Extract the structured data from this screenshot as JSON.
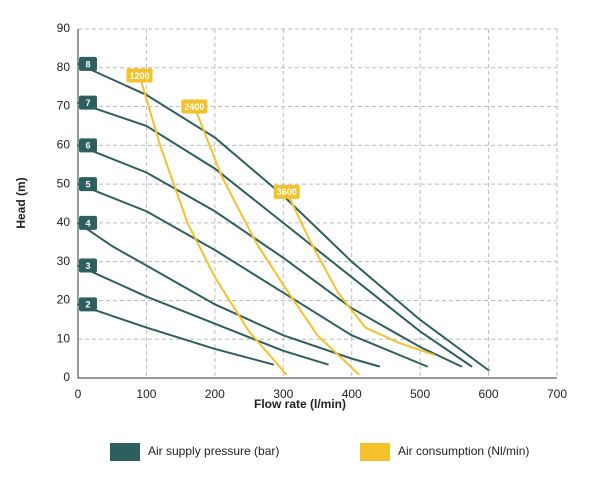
{
  "chart_data": {
    "type": "line",
    "x_label": "Flow rate (l/min)",
    "y_label": "Head (m)",
    "xlim": [
      0,
      700
    ],
    "xticks": [
      0,
      100,
      200,
      300,
      400,
      500,
      600,
      700
    ],
    "ylim": [
      0,
      90
    ],
    "yticks": [
      0,
      10,
      20,
      30,
      40,
      50,
      60,
      70,
      80,
      90
    ],
    "grid": true,
    "series_groups": [
      {
        "name": "Air supply pressure (bar)",
        "color": "#2e5f5f",
        "series": [
          {
            "label": "2",
            "x": [
              0,
              100,
              200,
              285
            ],
            "y": [
              19,
              13,
              7.5,
              3.5
            ]
          },
          {
            "label": "3",
            "x": [
              0,
              100,
              200,
              300,
              365
            ],
            "y": [
              29,
              21,
              14,
              7,
              3.5
            ]
          },
          {
            "label": "4",
            "x": [
              0,
              25,
              50,
              100,
              200,
              300,
              400,
              440
            ],
            "y": [
              40,
              37,
              34,
              29,
              19,
              11,
              5,
              3
            ]
          },
          {
            "label": "5",
            "x": [
              0,
              100,
              200,
              300,
              400,
              510
            ],
            "y": [
              50,
              43,
              33,
              22,
              11,
              3
            ]
          },
          {
            "label": "6",
            "x": [
              0,
              100,
              200,
              300,
              400,
              500,
              560
            ],
            "y": [
              60,
              53,
              43,
              31,
              18,
              8,
              3
            ]
          },
          {
            "label": "7",
            "x": [
              0,
              100,
              200,
              300,
              400,
              500,
              575
            ],
            "y": [
              71,
              65,
              54,
              40,
              26,
              12,
              3
            ]
          },
          {
            "label": "8",
            "x": [
              0,
              100,
              200,
              300,
              400,
              500,
              600
            ],
            "y": [
              81,
              73,
              62,
              47,
              30,
              15,
              2
            ]
          }
        ]
      },
      {
        "name": "Air consumption (Nl/min)",
        "color": "#f5c12b",
        "series": [
          {
            "label": "1200",
            "x": [
              90,
              120,
              160,
              200,
              250,
              304
            ],
            "y": [
              78,
              60,
              40,
              26,
              12,
              1
            ]
          },
          {
            "label": "2400",
            "x": [
              170,
              210,
              260,
              300,
              350,
              410
            ],
            "y": [
              70,
              52,
              35,
              24,
              11,
              1
            ]
          },
          {
            "label": "3600",
            "x": [
              305,
              340,
              380,
              420,
              470,
              520
            ],
            "y": [
              48,
              35,
              22,
              13,
              9,
              6
            ]
          }
        ]
      }
    ]
  }
}
